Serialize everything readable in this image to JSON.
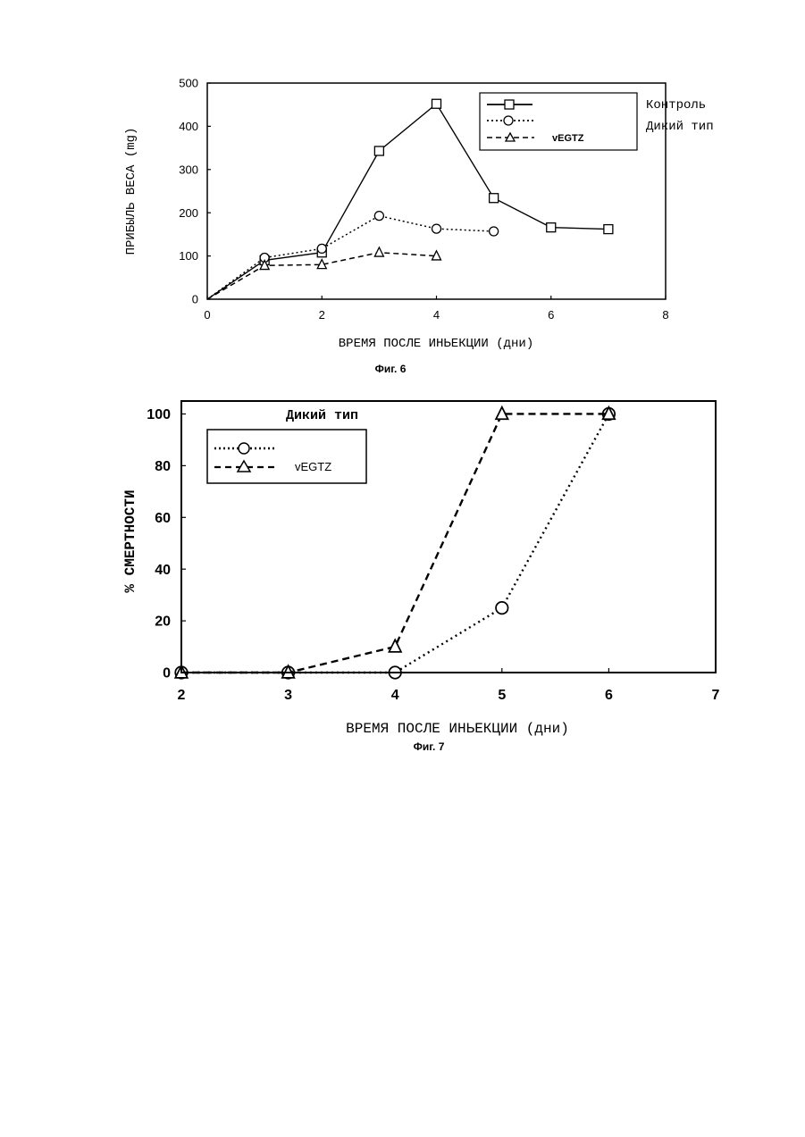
{
  "chart_data": [
    {
      "type": "line",
      "caption": "Фиг. 6",
      "xlabel": "ВРЕМЯ ПОСЛЕ ИНЬЕКЦИИ (дни)",
      "ylabel": "ПРИБЫЛЬ ВЕСА (mg)",
      "xlim": [
        0,
        8
      ],
      "ylim": [
        0,
        500
      ],
      "xticks": [
        0,
        2,
        4,
        6,
        8
      ],
      "yticks": [
        0,
        100,
        200,
        300,
        400,
        500
      ],
      "grid": false,
      "legend_position": "top-right",
      "series": [
        {
          "name": "Контроль",
          "marker": "square",
          "line": "solid",
          "x": [
            0,
            1,
            2,
            3,
            4,
            5,
            6,
            7
          ],
          "y": [
            0,
            90,
            108,
            343,
            452,
            234,
            166,
            162
          ]
        },
        {
          "name": "Дикий тип",
          "marker": "circle",
          "line": "dotted",
          "x": [
            0,
            1,
            2,
            3,
            4,
            5
          ],
          "y": [
            0,
            96,
            117,
            193,
            163,
            157
          ]
        },
        {
          "name": "vEGTZ",
          "marker": "triangle",
          "line": "dashed",
          "x": [
            0,
            1,
            2,
            3,
            4
          ],
          "y": [
            0,
            78,
            80,
            108,
            100
          ]
        }
      ]
    },
    {
      "type": "line",
      "caption": "Фиг. 7",
      "xlabel": "ВРЕМЯ ПОСЛЕ ИНЬЕКЦИИ (дни)",
      "ylabel": "% СМЕРТНОСТИ",
      "xlim": [
        2,
        7
      ],
      "ylim": [
        0,
        105
      ],
      "xticks": [
        2,
        3,
        4,
        5,
        6,
        7
      ],
      "yticks": [
        0,
        20,
        40,
        60,
        80,
        100
      ],
      "grid": false,
      "legend_position": "top-left",
      "series": [
        {
          "name": "Дикий тип",
          "marker": "circle",
          "line": "dotted",
          "x": [
            2,
            3,
            4,
            5,
            6
          ],
          "y": [
            0,
            0,
            0,
            25,
            100
          ]
        },
        {
          "name": "vEGTZ",
          "marker": "triangle",
          "line": "dashed",
          "x": [
            2,
            3,
            4,
            5,
            6
          ],
          "y": [
            0,
            0,
            10,
            100,
            100
          ]
        }
      ]
    }
  ]
}
